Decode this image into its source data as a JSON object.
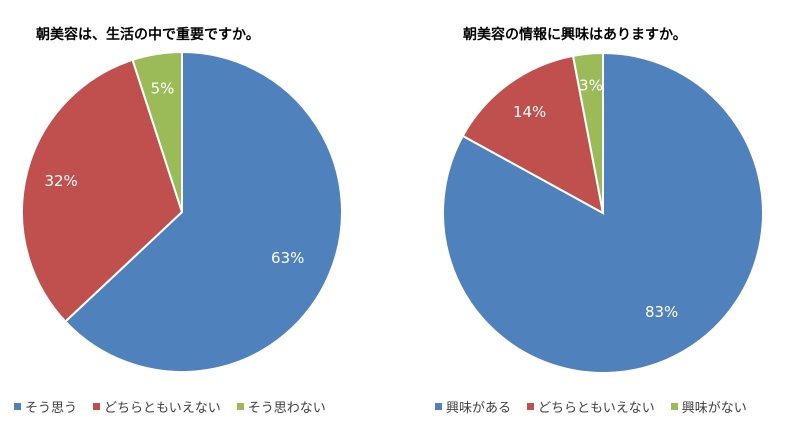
{
  "chart_data": [
    {
      "type": "pie",
      "title": "朝美容は、生活の中で重要ですか。",
      "categories": [
        "そう思う",
        "どちらともいえない",
        "そう思わない"
      ],
      "values": [
        63,
        32,
        5
      ],
      "labels": [
        "63%",
        "32%",
        "5%"
      ],
      "colors": [
        "#4F81BD",
        "#C0504D",
        "#9BBB59"
      ],
      "legend": "bottom"
    },
    {
      "type": "pie",
      "title": "朝美容の情報に興味はありますか。",
      "categories": [
        "興味がある",
        "どちらともいえない",
        "興味がない"
      ],
      "values": [
        83,
        14,
        3
      ],
      "labels": [
        "83%",
        "14%",
        "3%"
      ],
      "colors": [
        "#4F81BD",
        "#C0504D",
        "#9BBB59"
      ],
      "legend": "bottom"
    }
  ]
}
